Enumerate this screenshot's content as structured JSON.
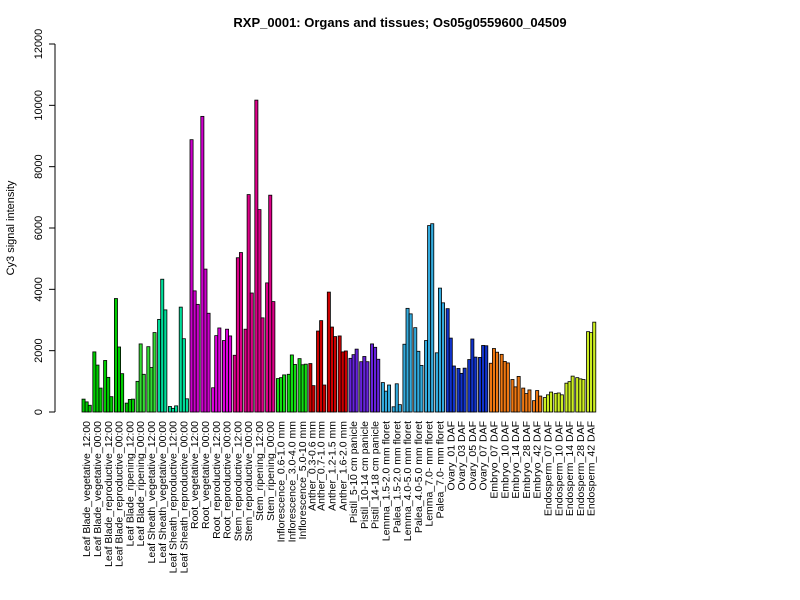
{
  "chart_data": {
    "type": "bar",
    "title": "RXP_0001: Organs and tissues; Os05g0559600_04509",
    "xlabel": "",
    "ylabel": "Cy3 signal intensity",
    "ylim": [
      0,
      12000
    ],
    "yticks": [
      0,
      2000,
      4000,
      6000,
      8000,
      10000,
      12000
    ],
    "grid": false,
    "groups": [
      {
        "label": "Leaf Blade_vegetative_12:00",
        "color": "#00CC00",
        "values": [
          420,
          330,
          220
        ]
      },
      {
        "label": "Leaf Blade_vegetative_00:00",
        "color": "#00CC00",
        "values": [
          1960,
          1530,
          780
        ]
      },
      {
        "label": "Leaf Blade_reproductive_12:00",
        "color": "#00CC00",
        "values": [
          1680,
          1130,
          500
        ]
      },
      {
        "label": "Leaf Blade_reproductive_00:00",
        "color": "#00CC00",
        "values": [
          3700,
          2120,
          1250
        ]
      },
      {
        "label": "Leaf Blade_ripening_12:00",
        "color": "#00CC00",
        "values": [
          290,
          410,
          420
        ]
      },
      {
        "label": "Leaf Blade_ripening_00:00",
        "color": "#33DD33",
        "values": [
          1000,
          2220,
          1230
        ]
      },
      {
        "label": "Leaf Sheath_vegetative_12:00",
        "color": "#33DD33",
        "values": [
          2130,
          1450,
          2590
        ]
      },
      {
        "label": "Leaf Sheath_vegetative_00:00",
        "color": "#00DD99",
        "values": [
          3020,
          4330,
          3330
        ]
      },
      {
        "label": "Leaf Sheath_reproductive_12:00",
        "color": "#00DD99",
        "values": [
          180,
          120,
          200
        ]
      },
      {
        "label": "Leaf Sheath_reproductive_00:00",
        "color": "#00DD99",
        "values": [
          3420,
          2390,
          430
        ]
      },
      {
        "label": "Root_vegetative_12:00",
        "color": "#CC00CC",
        "values": [
          8880,
          3950,
          3510
        ]
      },
      {
        "label": "Root_vegetative_00:00",
        "color": "#CC00CC",
        "values": [
          9640,
          4660,
          3220
        ]
      },
      {
        "label": "Root_reproductive_12:00",
        "color": "#DD00DD",
        "values": [
          790,
          2490,
          2740
        ]
      },
      {
        "label": "Root_reproductive_00:00",
        "color": "#DD00DD",
        "values": [
          2330,
          2700,
          2480
        ]
      },
      {
        "label": "Stem_reproductive_12:00",
        "color": "#DD0088",
        "values": [
          1850,
          5030,
          5200
        ]
      },
      {
        "label": "Stem_reproductive_00:00",
        "color": "#DD0088",
        "values": [
          2700,
          7090,
          3880
        ]
      },
      {
        "label": "Stem_ripening_12:00",
        "color": "#DD0088",
        "values": [
          10170,
          6600,
          3070
        ]
      },
      {
        "label": "Stem_ripening_00:00",
        "color": "#DD0088",
        "values": [
          4210,
          7070,
          3600
        ]
      },
      {
        "label": "Inflorescence_0.6-1.0 mm",
        "color": "#11DD11",
        "values": [
          1090,
          1120,
          1210
        ]
      },
      {
        "label": "Inflorescence_3.0-4.0 mm",
        "color": "#11DD11",
        "values": [
          1230,
          1860,
          1550
        ]
      },
      {
        "label": "Inflorescence_5.0-10 mm",
        "color": "#11DD11",
        "values": [
          1740,
          1540,
          1560
        ]
      },
      {
        "label": "Anther_0.3-0.6 mm",
        "color": "#CC0000",
        "values": [
          1580,
          860
        ]
      },
      {
        "label": "Anther_0.7-1.0 mm",
        "color": "#CC0000",
        "values": [
          2640,
          2980,
          880
        ]
      },
      {
        "label": "Anther_1.2-1.5 mm",
        "color": "#CC0000",
        "values": [
          3910,
          2770,
          2460
        ]
      },
      {
        "label": "Anther_1.6-2.0 mm",
        "color": "#CC0000",
        "values": [
          2480,
          1960,
          1990
        ]
      },
      {
        "label": "Pistil_5-10 cm panicle",
        "color": "#6622DD",
        "values": [
          1750,
          1870,
          2050
        ]
      },
      {
        "label": "Pistil_10-14 cm panicle",
        "color": "#6622DD",
        "values": [
          1640,
          1810,
          1640
        ]
      },
      {
        "label": "Pistil_14-18 cm panicle",
        "color": "#6622DD",
        "values": [
          2220,
          2110,
          1720
        ]
      },
      {
        "label": "Lemma_1.5-2.0 mm floret",
        "color": "#33AADD",
        "values": [
          960,
          680,
          880
        ]
      },
      {
        "label": "Palea_1.5-2.0 mm floret",
        "color": "#33AADD",
        "values": [
          170,
          920,
          240
        ]
      },
      {
        "label": "Lemma_4.0-5.0 mm floret",
        "color": "#33AADD",
        "values": [
          2210,
          3380,
          3200
        ]
      },
      {
        "label": "Palea_4.0-5.0 mm floret",
        "color": "#33AADD",
        "values": [
          2750,
          1980,
          1520
        ]
      },
      {
        "label": "Lemma_7.0- mm floret",
        "color": "#33AADD",
        "values": [
          2330,
          6080,
          6140
        ]
      },
      {
        "label": "Palea_7.0- mm floret",
        "color": "#33AADD",
        "values": [
          1930,
          4040,
          3560
        ]
      },
      {
        "label": "Ovary_01 DAF",
        "color": "#1133CC",
        "values": [
          3370,
          2410,
          1500
        ]
      },
      {
        "label": "Ovary_03 DAF",
        "color": "#1133CC",
        "values": [
          1420,
          1260,
          1430
        ]
      },
      {
        "label": "Ovary_05 DAF",
        "color": "#1133CC",
        "values": [
          1710,
          2380,
          1790
        ]
      },
      {
        "label": "Ovary_07 DAF",
        "color": "#1133CC",
        "values": [
          1780,
          2170,
          2160
        ]
      },
      {
        "label": "Embryo_07 DAF",
        "color": "#EE7711",
        "values": [
          1590,
          2070,
          1950
        ]
      },
      {
        "label": "Embryo_10 DAF",
        "color": "#EE7711",
        "values": [
          1880,
          1650,
          1600
        ]
      },
      {
        "label": "Embryo_14 DAF",
        "color": "#EE7711",
        "values": [
          1060,
          820,
          1160
        ]
      },
      {
        "label": "Embryo_28 DAF",
        "color": "#EE7711",
        "values": [
          780,
          600,
          720
        ]
      },
      {
        "label": "Embryo_42 DAF",
        "color": "#EE7711",
        "values": [
          370,
          700,
          520
        ]
      },
      {
        "label": "Endosperm_07 DAF",
        "color": "#CCEE22",
        "values": [
          470,
          560,
          650
        ]
      },
      {
        "label": "Endosperm_10 DAF",
        "color": "#CCEE22",
        "values": [
          600,
          620,
          560
        ]
      },
      {
        "label": "Endosperm_14 DAF",
        "color": "#CCEE22",
        "values": [
          940,
          990,
          1170
        ]
      },
      {
        "label": "Endosperm_28 DAF",
        "color": "#CCEE22",
        "values": [
          1120,
          1080,
          1060
        ]
      },
      {
        "label": "Endosperm_42 DAF",
        "color": "#CCEE22",
        "values": [
          2620,
          2590,
          2930
        ]
      }
    ]
  }
}
